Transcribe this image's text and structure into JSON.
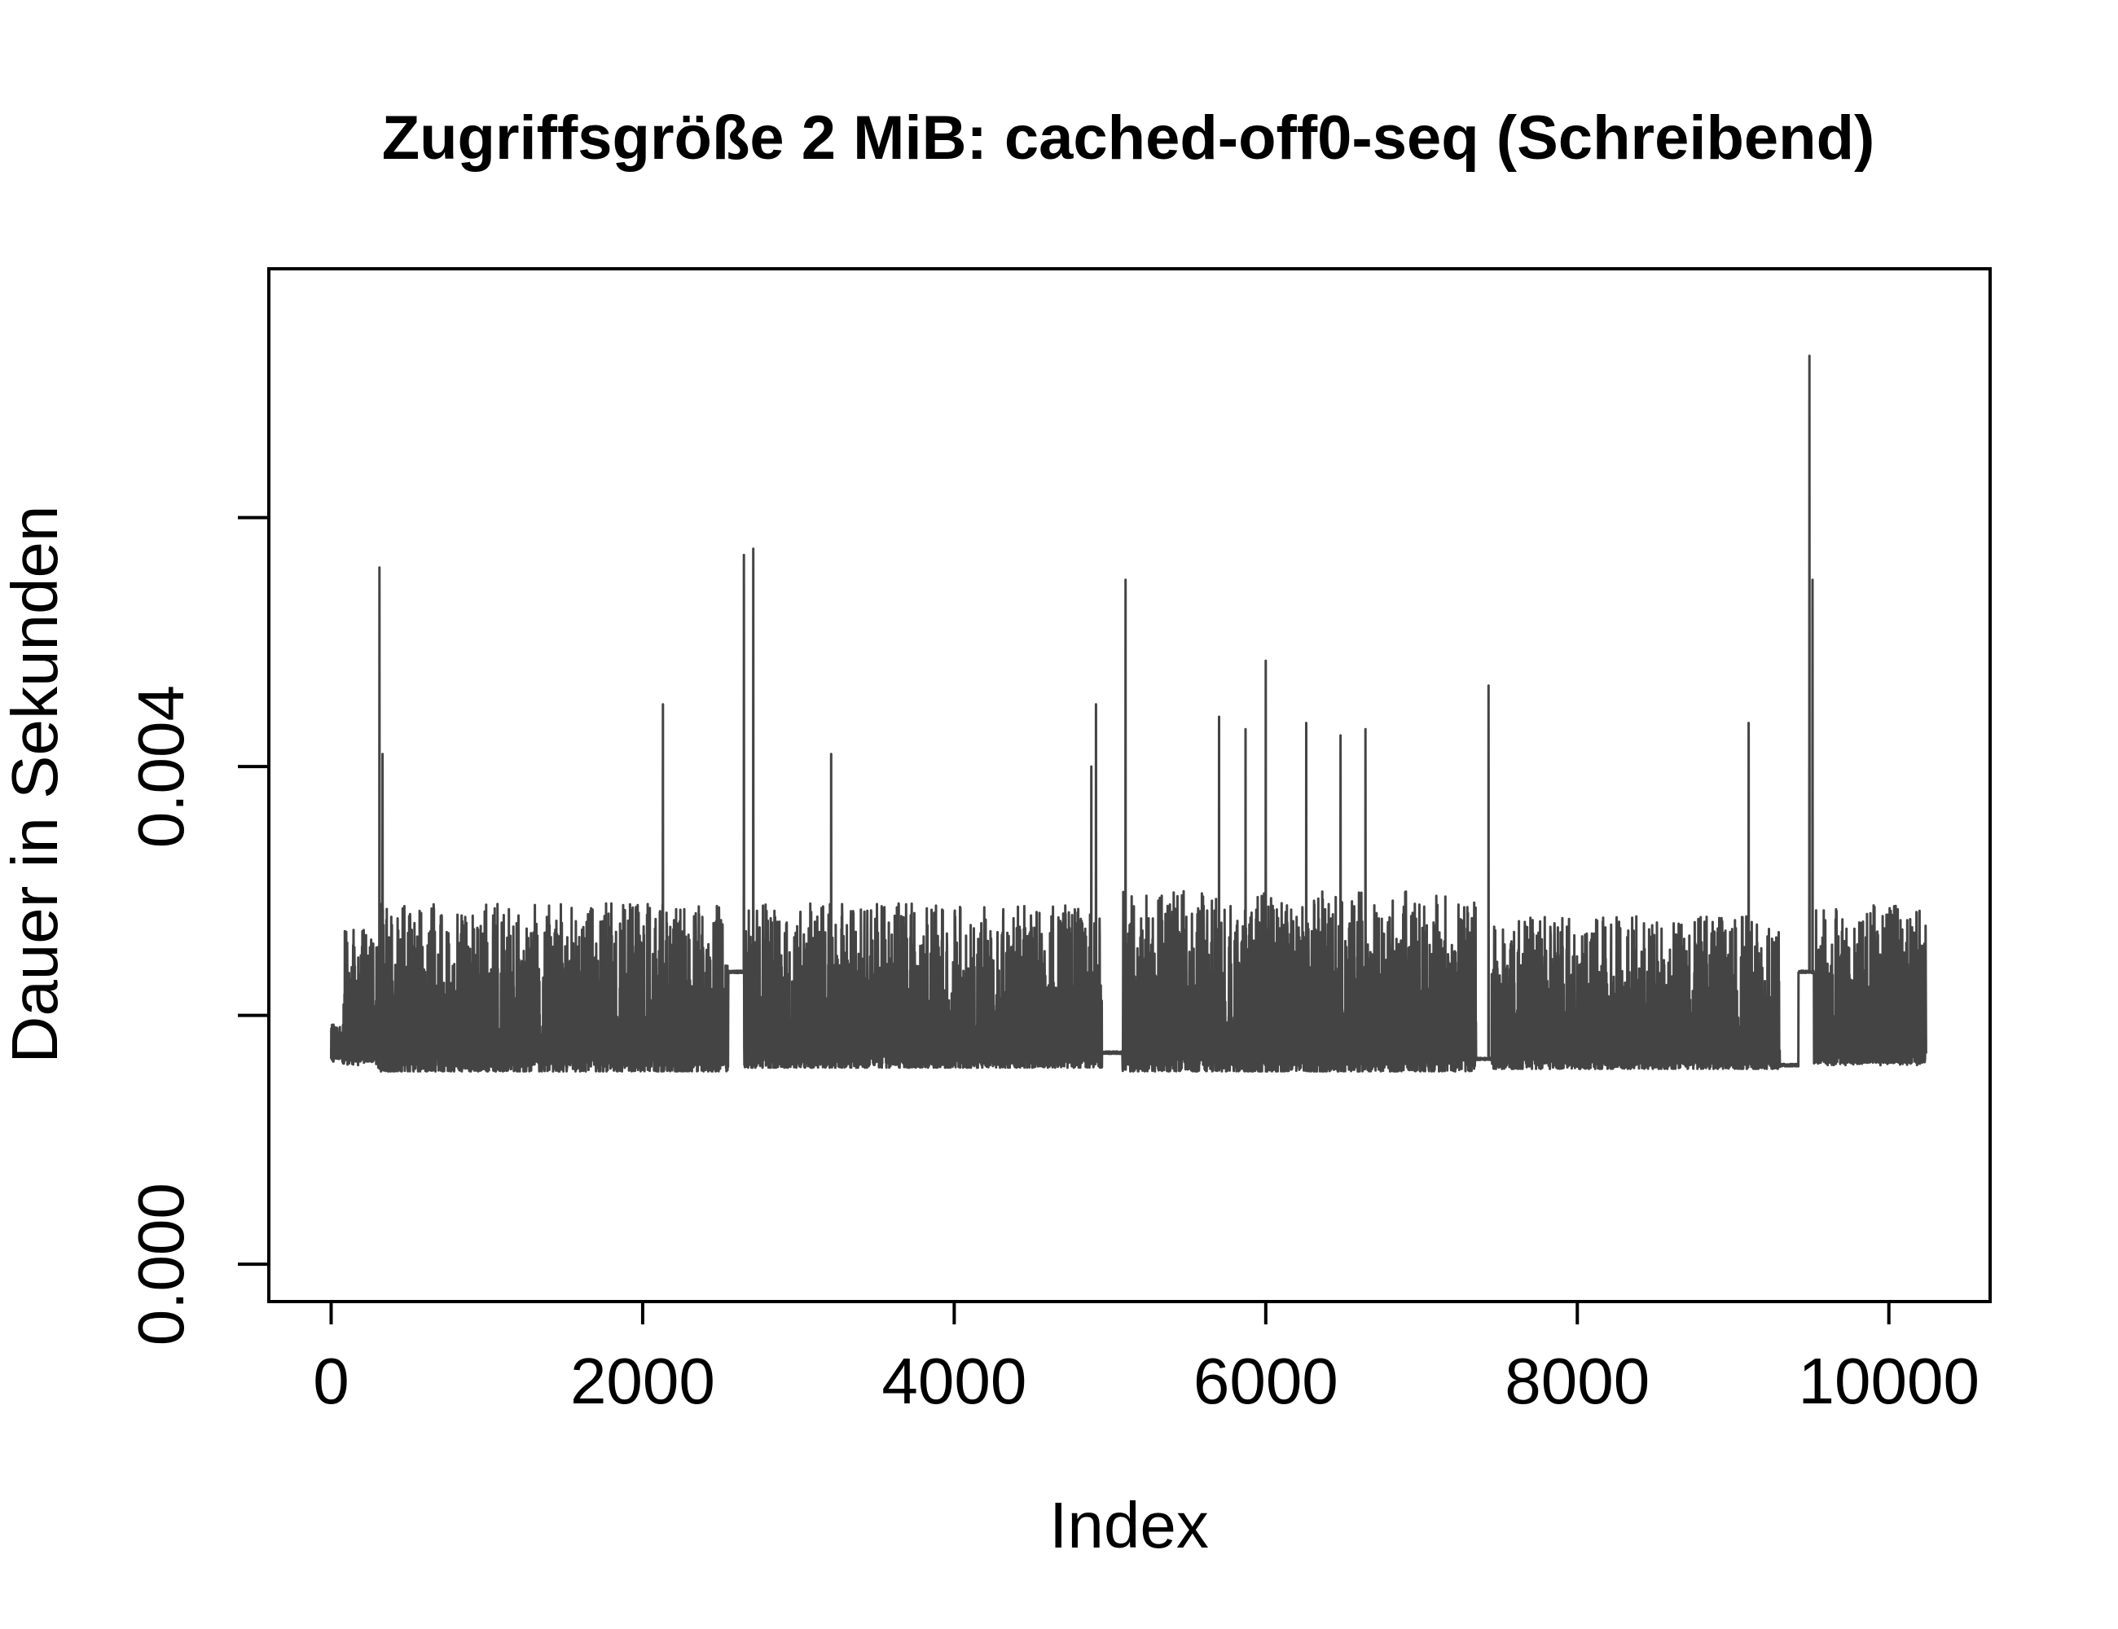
{
  "chart_data": {
    "type": "line",
    "title": "Zugriffsgröße 2 MiB: cached-off0-seq (Schreibend)",
    "xlabel": "Index",
    "ylabel": "Dauer in Sekunden",
    "xlim": [
      -400,
      10650
    ],
    "ylim": [
      -0.0003,
      0.008
    ],
    "x_ticks": [
      0,
      2000,
      4000,
      6000,
      8000,
      10000
    ],
    "x_tick_labels": [
      "0",
      "2000",
      "4000",
      "6000",
      "8000",
      "10000"
    ],
    "y_ticks": [
      0.0,
      0.002,
      0.004,
      0.006
    ],
    "y_tick_labels": [
      "0.000",
      "",
      "0.004",
      ""
    ],
    "grid": false,
    "line_color": "#444444",
    "series": [
      {
        "n_points": 10240,
        "baseline": 0.0016,
        "segments": [
          {
            "from": 0,
            "to": 70,
            "low": 0.00165,
            "high": 0.00195
          },
          {
            "from": 70,
            "to": 300,
            "low": 0.00163,
            "high": 0.0027
          },
          {
            "from": 300,
            "to": 2550,
            "low": 0.00155,
            "high": 0.0029
          },
          {
            "from": 2550,
            "to": 2650,
            "low": 0.00235,
            "high": 0.00235
          },
          {
            "from": 2650,
            "to": 4950,
            "low": 0.00158,
            "high": 0.0029
          },
          {
            "from": 4950,
            "to": 5080,
            "low": 0.0017,
            "high": 0.0017
          },
          {
            "from": 5080,
            "to": 7350,
            "low": 0.00155,
            "high": 0.003
          },
          {
            "from": 7350,
            "to": 7450,
            "low": 0.00165,
            "high": 0.00165
          },
          {
            "from": 7450,
            "to": 9300,
            "low": 0.00157,
            "high": 0.0028
          },
          {
            "from": 9300,
            "to": 9420,
            "low": 0.0016,
            "high": 0.0016
          },
          {
            "from": 9420,
            "to": 9520,
            "low": 0.00235,
            "high": 0.00235
          },
          {
            "from": 9520,
            "to": 10240,
            "low": 0.00162,
            "high": 0.0029
          }
        ],
        "spikes": [
          {
            "x": 310,
            "y": 0.0056
          },
          {
            "x": 330,
            "y": 0.0041
          },
          {
            "x": 2130,
            "y": 0.0045
          },
          {
            "x": 2650,
            "y": 0.0057
          },
          {
            "x": 2710,
            "y": 0.00575
          },
          {
            "x": 3210,
            "y": 0.0041
          },
          {
            "x": 4880,
            "y": 0.004
          },
          {
            "x": 4910,
            "y": 0.0045
          },
          {
            "x": 5100,
            "y": 0.0055
          },
          {
            "x": 5700,
            "y": 0.0044
          },
          {
            "x": 5870,
            "y": 0.0043
          },
          {
            "x": 6000,
            "y": 0.00485
          },
          {
            "x": 6260,
            "y": 0.00435
          },
          {
            "x": 6480,
            "y": 0.00425
          },
          {
            "x": 6640,
            "y": 0.0043
          },
          {
            "x": 7430,
            "y": 0.00465
          },
          {
            "x": 9100,
            "y": 0.00435
          },
          {
            "x": 9490,
            "y": 0.0073
          },
          {
            "x": 9510,
            "y": 0.0055
          }
        ]
      }
    ]
  }
}
